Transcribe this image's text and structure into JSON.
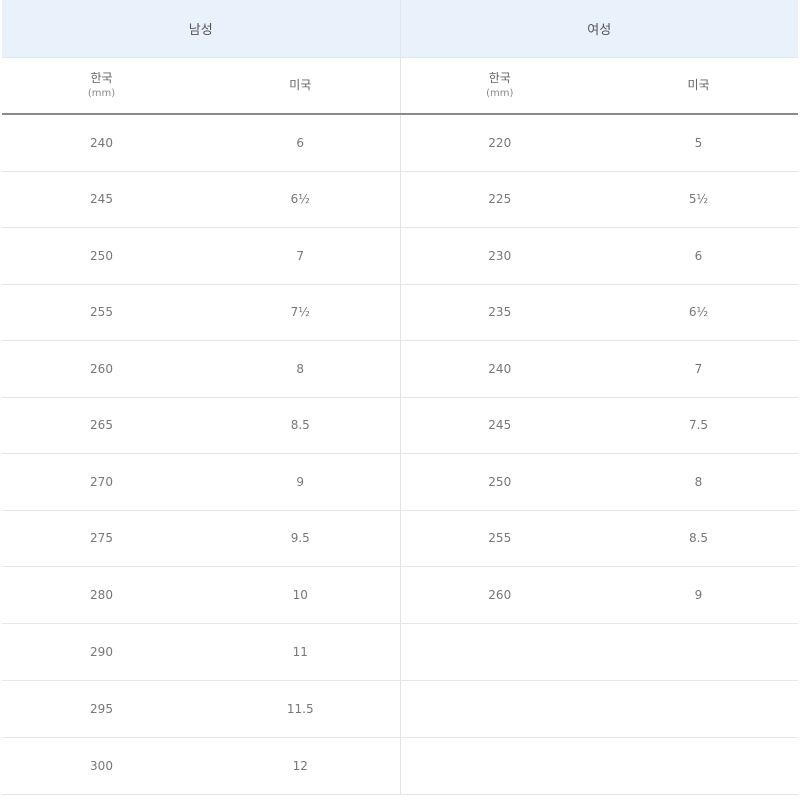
{
  "groups": {
    "men": "남성",
    "women": "여성"
  },
  "columns": {
    "korea": "한국",
    "korea_unit": "(mm)",
    "us": "미국"
  },
  "rows": [
    {
      "men_kr": "240",
      "men_us": "6",
      "women_kr": "220",
      "women_us": "5"
    },
    {
      "men_kr": "245",
      "men_us": "6½",
      "women_kr": "225",
      "women_us": "5½"
    },
    {
      "men_kr": "250",
      "men_us": "7",
      "women_kr": "230",
      "women_us": "6"
    },
    {
      "men_kr": "255",
      "men_us": "7½",
      "women_kr": "235",
      "women_us": "6½"
    },
    {
      "men_kr": "260",
      "men_us": "8",
      "women_kr": "240",
      "women_us": "7"
    },
    {
      "men_kr": "265",
      "men_us": "8.5",
      "women_kr": "245",
      "women_us": "7.5"
    },
    {
      "men_kr": "270",
      "men_us": "9",
      "women_kr": "250",
      "women_us": "8"
    },
    {
      "men_kr": "275",
      "men_us": "9.5",
      "women_kr": "255",
      "women_us": "8.5"
    },
    {
      "men_kr": "280",
      "men_us": "10",
      "women_kr": "260",
      "women_us": "9"
    },
    {
      "men_kr": "290",
      "men_us": "11",
      "women_kr": "",
      "women_us": ""
    },
    {
      "men_kr": "295",
      "men_us": "11.5",
      "women_kr": "",
      "women_us": ""
    },
    {
      "men_kr": "300",
      "men_us": "12",
      "women_kr": "",
      "women_us": ""
    }
  ]
}
